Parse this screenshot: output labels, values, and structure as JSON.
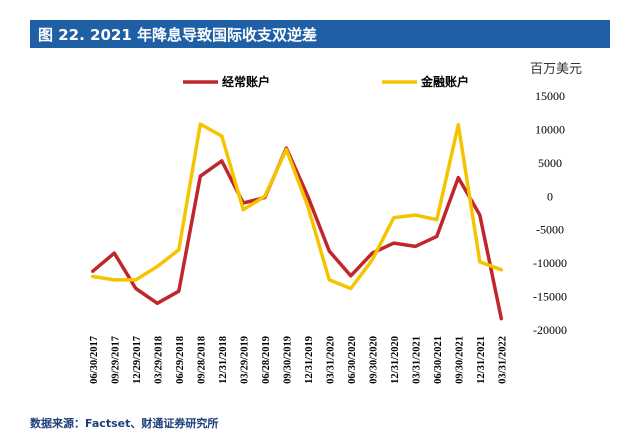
{
  "header": {
    "title": "图 22. 2021 年降息导致国际收支双逆差"
  },
  "footer": {
    "source": "数据来源：Factset、财通证券研究所"
  },
  "chart_data": {
    "type": "line",
    "title": "图 22. 2021 年降息导致国际收支双逆差",
    "unit": "百万美元",
    "xlabel": "",
    "ylabel": "百万美元",
    "ylim": [
      -20000,
      15000
    ],
    "yticks": [
      15000,
      10000,
      5000,
      0,
      -5000,
      -10000,
      -15000,
      -20000
    ],
    "y_axis_side": "right",
    "grid": false,
    "legend_position": "top",
    "categories": [
      "06/30/2017",
      "09/29/2017",
      "12/29/2017",
      "03/29/2018",
      "06/29/2018",
      "09/28/2018",
      "12/31/2018",
      "03/29/2019",
      "06/28/2019",
      "09/30/2019",
      "12/31/2019",
      "03/31/2020",
      "06/30/2020",
      "09/30/2020",
      "12/31/2020",
      "03/31/2021",
      "06/30/2021",
      "09/30/2021",
      "12/31/2021",
      "03/31/2022"
    ],
    "series": [
      {
        "name": "经常账户",
        "color": "#c0272d",
        "values": [
          -11200,
          -8500,
          -13800,
          -16000,
          -14200,
          3000,
          5300,
          -1000,
          -200,
          7200,
          0,
          -8200,
          -11900,
          -8500,
          -7000,
          -7500,
          -6000,
          2800,
          -2800,
          -18300
        ]
      },
      {
        "name": "金融账户",
        "color": "#f5c400",
        "values": [
          -12000,
          -12500,
          -12500,
          -10500,
          -8000,
          10800,
          9000,
          -2000,
          0,
          7000,
          -1500,
          -12500,
          -13800,
          -9500,
          -3200,
          -2800,
          -3500,
          10700,
          -9800,
          -11000
        ]
      }
    ]
  }
}
